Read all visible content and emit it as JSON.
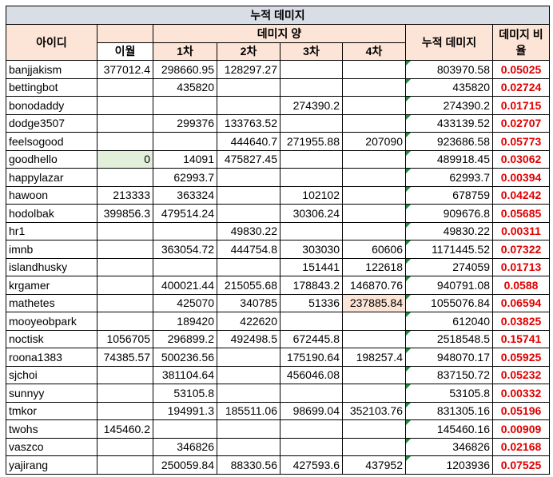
{
  "table": {
    "title": "누적 데미지",
    "headers": {
      "id": "아이디",
      "damage": "데미지 양",
      "periods": [
        "이월",
        "1차",
        "2차",
        "3차",
        "4차"
      ],
      "total": "누적 데미지",
      "ratio": "데미지 비율"
    },
    "rows": [
      [
        "banjjakism",
        377012.4,
        298660.95,
        128297.27,
        null,
        null,
        803970.58,
        0.05025
      ],
      [
        "bettingbot",
        null,
        435820,
        null,
        null,
        null,
        435820,
        0.02724
      ],
      [
        "bonodaddy",
        null,
        null,
        null,
        274390.2,
        null,
        274390.2,
        0.01715
      ],
      [
        "dodge3507",
        null,
        299376,
        133763.52,
        null,
        null,
        433139.52,
        0.02707
      ],
      [
        "feelsogood",
        null,
        null,
        444640.7,
        271955.88,
        207090,
        923686.58,
        0.05773
      ],
      [
        "goodhello",
        0,
        14091,
        475827.45,
        null,
        null,
        489918.45,
        0.03062
      ],
      [
        "happylazar",
        null,
        62993.7,
        null,
        null,
        null,
        62993.7,
        0.00394
      ],
      [
        "hawoon",
        213333,
        363324,
        null,
        102102,
        null,
        678759,
        0.04242
      ],
      [
        "hodolbak",
        399856.3,
        479514.24,
        null,
        30306.24,
        null,
        909676.8,
        0.05685
      ],
      [
        "hr1",
        null,
        null,
        49830.22,
        null,
        null,
        49830.22,
        0.00311
      ],
      [
        "imnb",
        null,
        363054.72,
        444754.8,
        303030,
        60606,
        1171445.52,
        0.07322
      ],
      [
        "islandhusky",
        null,
        null,
        null,
        151441,
        122618,
        274059,
        0.01713
      ],
      [
        "krgamer",
        null,
        400021.44,
        215055.68,
        178843.2,
        146870.76,
        940791.08,
        0.0588
      ],
      [
        "mathetes",
        null,
        425070,
        340785,
        51336,
        237885.84,
        1055076.84,
        0.06594
      ],
      [
        "mooyeobpark",
        null,
        189420,
        422620,
        null,
        null,
        612040,
        0.03825
      ],
      [
        "noctisk",
        1056705,
        296899.2,
        492498.5,
        672445.8,
        null,
        2518548.5,
        0.15741
      ],
      [
        "roona1383",
        74385.57,
        500236.56,
        null,
        175190.64,
        198257.4,
        948070.17,
        0.05925
      ],
      [
        "sjchoi",
        null,
        381104.64,
        null,
        456046.08,
        null,
        837150.72,
        0.05232
      ],
      [
        "sunnyy",
        null,
        53105.8,
        null,
        null,
        null,
        53105.8,
        0.00332
      ],
      [
        "tmkor",
        null,
        194991.3,
        185511.06,
        98699.04,
        352103.76,
        831305.16,
        0.05196
      ],
      [
        "twohs",
        145460.2,
        null,
        null,
        null,
        null,
        145460.16,
        0.00909
      ],
      [
        "vaszco",
        null,
        346826,
        null,
        null,
        null,
        346826,
        0.02168
      ],
      [
        "yajirang",
        null,
        250059.84,
        88330.56,
        427593.6,
        437952,
        1203936,
        0.07525
      ]
    ]
  }
}
